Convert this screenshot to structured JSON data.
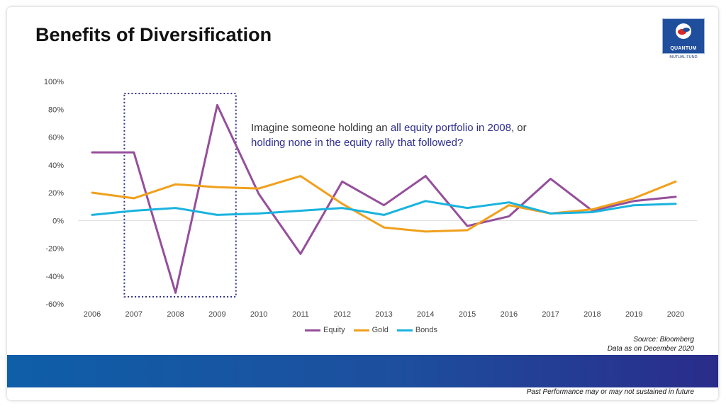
{
  "slide": {
    "title": "Benefits of Diversification",
    "logo": {
      "word": "QUANTUM",
      "sub": "MUTUAL FUND"
    },
    "annotation": {
      "line1_plain": "Imagine someone holding an ",
      "line1_highlight": "all equity portfolio in 2008",
      "line1_end": ", or",
      "line2_highlight": "holding none in the equity rally that followed?"
    },
    "source_line1": "Source: Bloomberg",
    "source_line2": "Data as on December 2020",
    "disclaimer": "Past Performance may or may not sustained in future"
  },
  "colors": {
    "equity": "#954f9b",
    "gold": "#f0a01c",
    "bonds": "#1ab3de",
    "band_start": "#0f5ea8",
    "band_end": "#2a2c8a",
    "highlight_text": "#2d2d8f",
    "box": "#2d2d8f"
  },
  "chart_data": {
    "type": "line",
    "x": [
      "2006",
      "2007",
      "2008",
      "2009",
      "2010",
      "2011",
      "2012",
      "2013",
      "2014",
      "2015",
      "2016",
      "2017",
      "2018",
      "2019",
      "2020"
    ],
    "series": [
      {
        "name": "Equity",
        "color": "#954f9b",
        "values": [
          49,
          49,
          -52,
          83,
          19,
          -24,
          28,
          11,
          32,
          -4,
          3,
          30,
          7,
          14,
          17
        ]
      },
      {
        "name": "Gold",
        "color": "#f0a01c",
        "values": [
          20,
          16,
          26,
          24,
          23,
          32,
          12,
          -5,
          -8,
          -7,
          11,
          5,
          8,
          16,
          28
        ]
      },
      {
        "name": "Bonds",
        "color": "#1ab3de",
        "values": [
          4,
          7,
          9,
          4,
          5,
          7,
          9,
          4,
          14,
          9,
          13,
          5,
          6,
          11,
          12
        ]
      }
    ],
    "yticks": [
      "100%",
      "80%",
      "60%",
      "40%",
      "20%",
      "0%",
      "-20%",
      "-40%",
      "-60%"
    ],
    "ylim": [
      -60,
      100
    ],
    "highlight_range": [
      "2007",
      "2009"
    ],
    "legend_position": "bottom",
    "grid": false
  }
}
